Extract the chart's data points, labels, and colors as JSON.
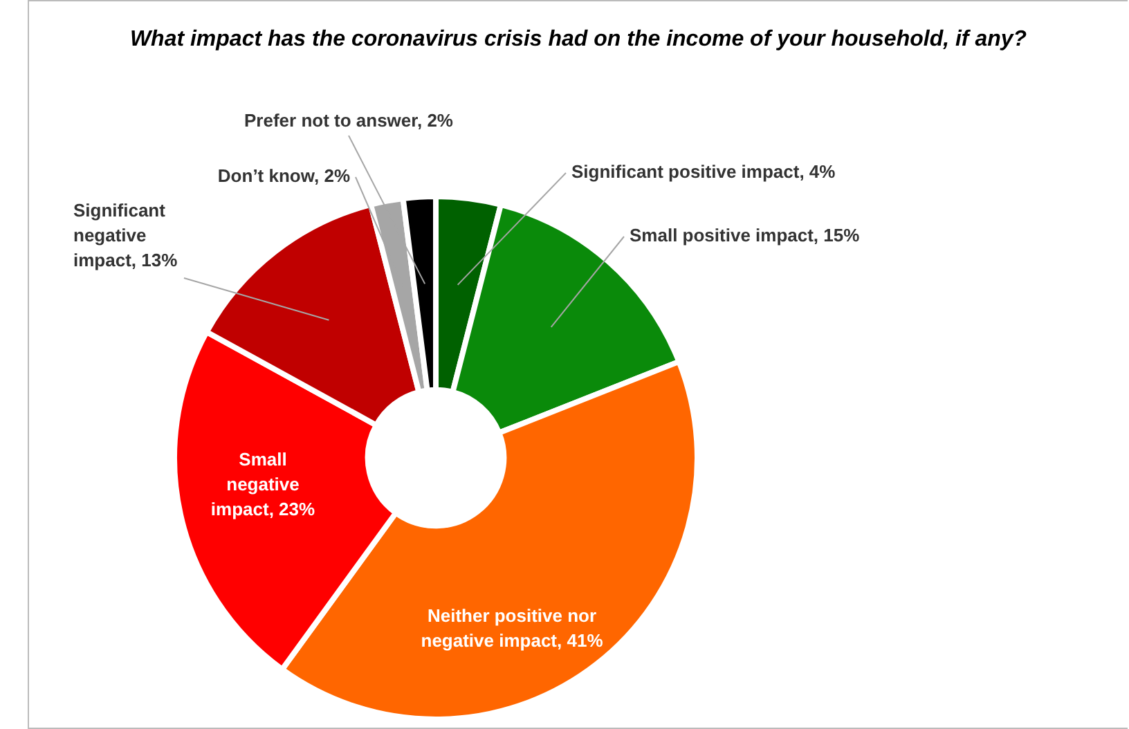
{
  "chart_data": {
    "type": "donut",
    "title": "What impact has the coronavirus crisis had on the income of your household, if any?",
    "categories": [
      "Significant positive impact",
      "Small positive impact",
      "Neither positive nor negative impact",
      "Small negative impact",
      "Significant negative impact",
      "Don’t know",
      "Prefer not to answer"
    ],
    "value_labels": [
      ", 4%",
      ", 15%",
      ", 41%",
      ", 23%",
      ", 13%",
      ", 2%",
      ", 2%"
    ],
    "values": [
      4,
      15,
      41,
      23,
      13,
      2,
      2
    ],
    "colors": [
      "#006100",
      "#0a8a0a",
      "#ff6600",
      "#ff0000",
      "#c00000",
      "#a6a6a6",
      "#000000"
    ],
    "legend": false
  }
}
